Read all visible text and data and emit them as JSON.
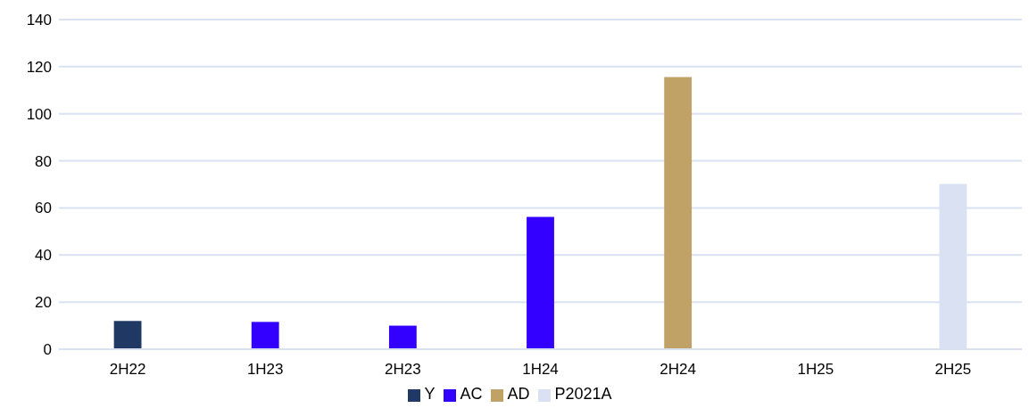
{
  "chart_data": {
    "type": "bar",
    "stacked": true,
    "categories": [
      "2H22",
      "1H23",
      "2H23",
      "1H24",
      "2H24",
      "1H25",
      "2H25"
    ],
    "series": [
      {
        "name": "Y",
        "color": "#203864",
        "values": [
          12,
          null,
          null,
          null,
          null,
          null,
          null
        ]
      },
      {
        "name": "AC",
        "color": "#3300ff",
        "values": [
          null,
          11.6,
          10,
          56.2,
          null,
          null,
          null
        ]
      },
      {
        "name": "AD",
        "color": "#c1a266",
        "values": [
          null,
          null,
          null,
          null,
          115.6,
          null,
          null
        ]
      },
      {
        "name": "P2021A",
        "color": "#d9e1f2",
        "values": [
          null,
          null,
          null,
          null,
          null,
          null,
          70.2
        ]
      }
    ],
    "ylim": [
      0,
      140
    ],
    "yticks": [
      0,
      20,
      40,
      60,
      80,
      100,
      120,
      140
    ],
    "grid": "y",
    "legend": "bottom"
  }
}
